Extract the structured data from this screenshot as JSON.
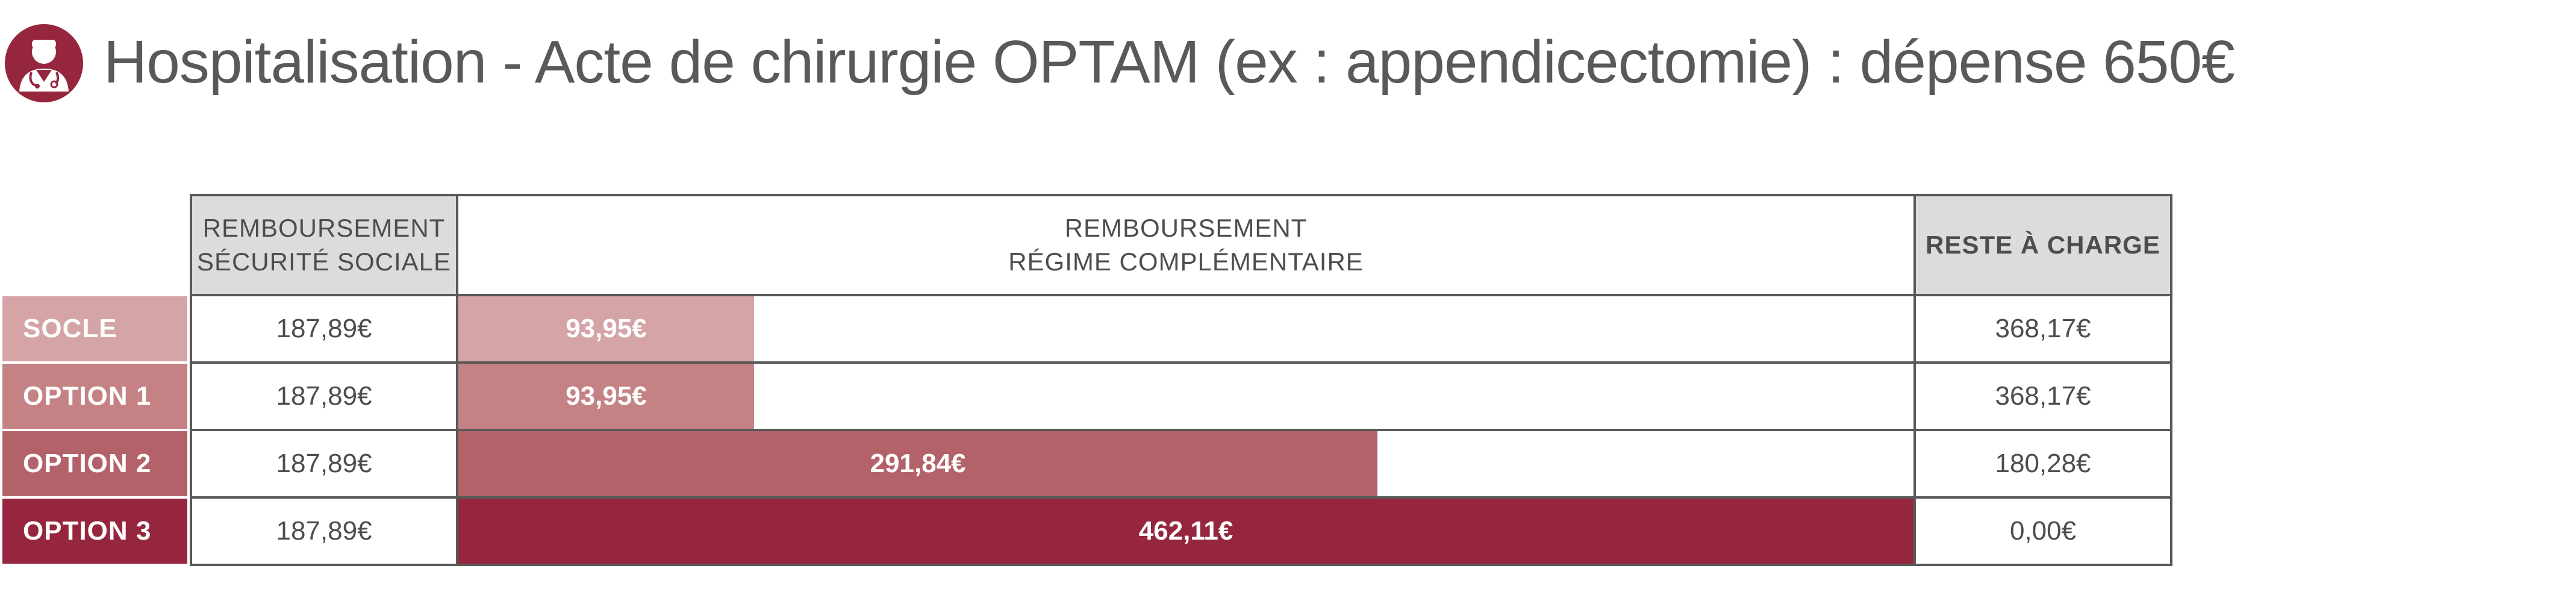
{
  "title": "Hospitalisation - Acte de chirurgie OPTAM (ex : appendicectomie) : dépense 650€",
  "icon": "doctor-icon",
  "colors": {
    "accent": "#96263e",
    "socle": "#d4a4a6",
    "option1": "#c48285",
    "option2": "#b4626a",
    "option3": "#96263e",
    "header_bg": "#dcdcdc",
    "border": "#595959",
    "text": "#595959"
  },
  "headers": {
    "secu_line1": "REMBOURSEMENT",
    "secu_line2": "SÉCURITÉ SOCIALE",
    "compl_line1": "REMBOURSEMENT",
    "compl_line2": "RÉGIME COMPLÉMENTAIRE",
    "reste": "RESTE À CHARGE"
  },
  "chart_data": {
    "type": "bar",
    "title": "Hospitalisation - Acte de chirurgie OPTAM (ex : appendicectomie) : dépense 650€",
    "total": 650,
    "categories": [
      "SOCLE",
      "OPTION 1",
      "OPTION 2",
      "OPTION 3"
    ],
    "securite_sociale": [
      187.89,
      187.89,
      187.89,
      187.89
    ],
    "complementaire": [
      93.95,
      93.95,
      291.84,
      462.11
    ],
    "reste_a_charge": [
      368.17,
      368.17,
      180.28,
      0.0
    ]
  },
  "rows": [
    {
      "label": "SOCLE",
      "secu": "187,89€",
      "compl": "93,95€",
      "reste": "368,17€"
    },
    {
      "label": "OPTION 1",
      "secu": "187,89€",
      "compl": "93,95€",
      "reste": "368,17€"
    },
    {
      "label": "OPTION 2",
      "secu": "187,89€",
      "compl": "291,84€",
      "reste": "180,28€"
    },
    {
      "label": "OPTION 3",
      "secu": "187,89€",
      "compl": "462,11€",
      "reste": "0,00€"
    }
  ]
}
